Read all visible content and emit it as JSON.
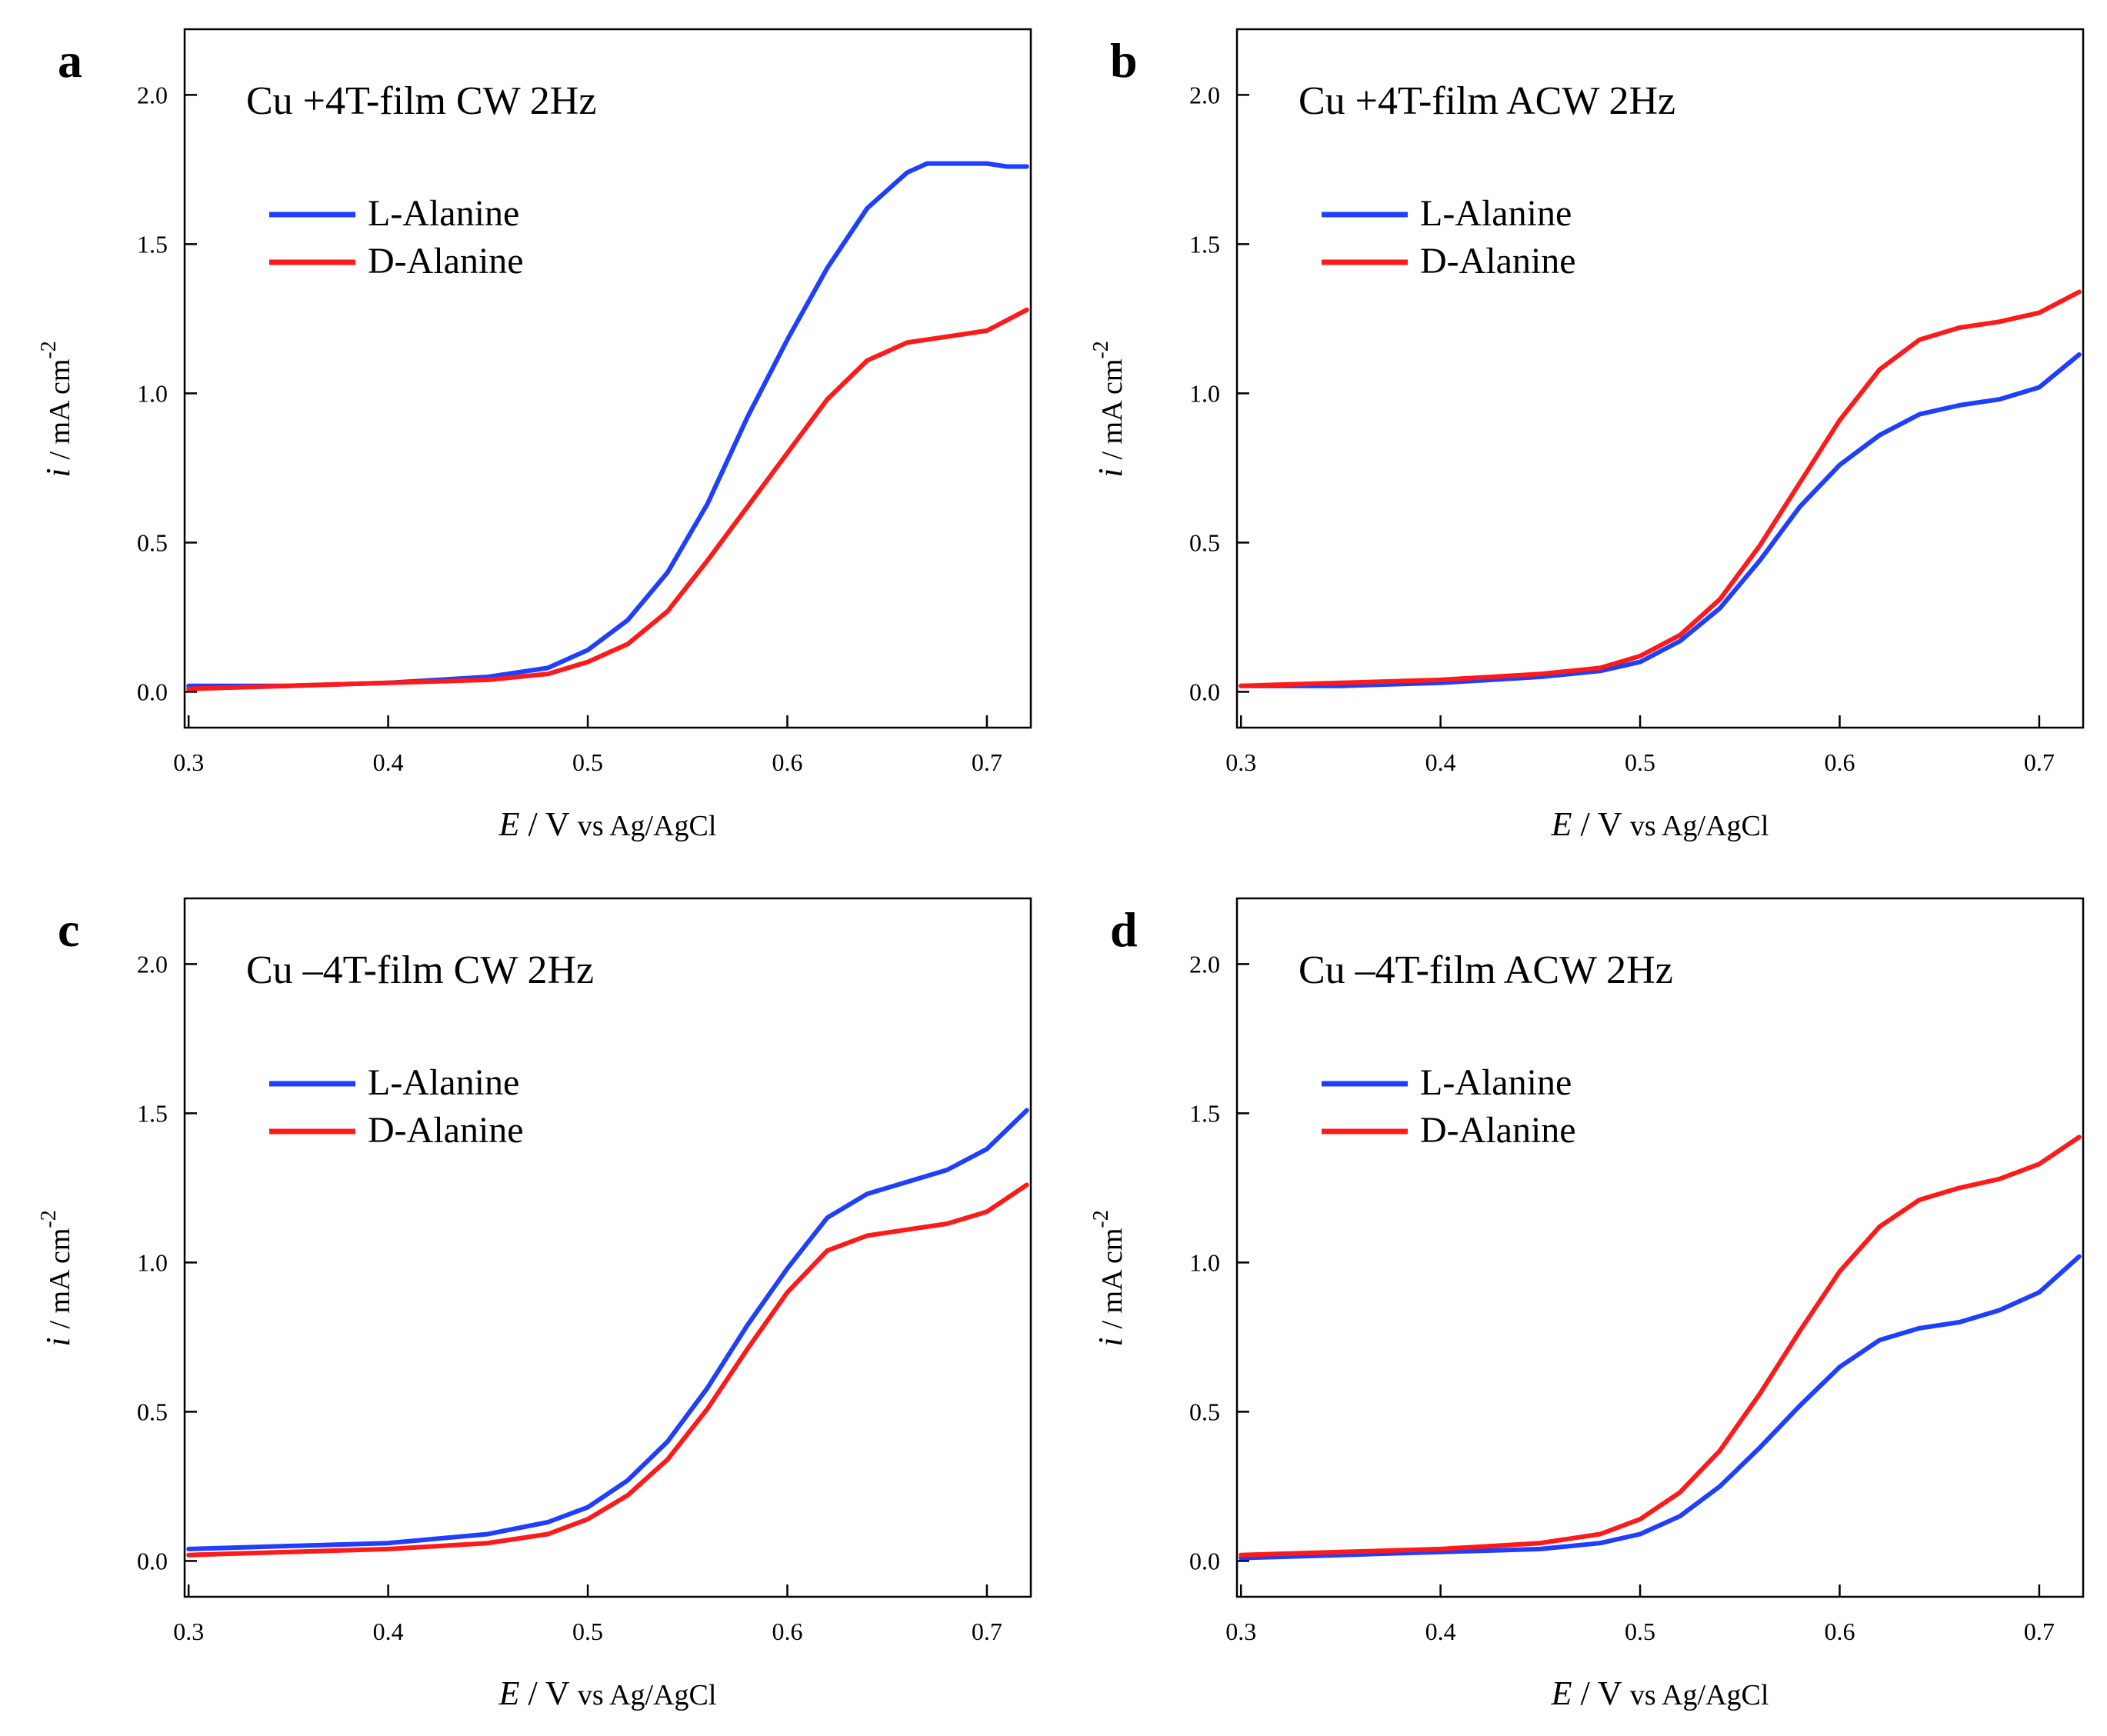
{
  "colors": {
    "blue": "#1f3fff",
    "red": "#ff1a1a",
    "axis": "#000000"
  },
  "chart_data": [
    {
      "panel": "a",
      "type": "line",
      "title": "Cu +4T-film  CW 2Hz",
      "xlabel_symbol": "E",
      "xlabel_unit": "/ V",
      "xlabel_ref": "vs Ag/AgCl",
      "ylabel_symbol": "i",
      "ylabel_unit": "/ mA cm",
      "ylabel_exp": "-2",
      "xlim": [
        0.298,
        0.722
      ],
      "ylim": [
        -0.12,
        2.22
      ],
      "xticks": [
        "0.3",
        "0.4",
        "0.5",
        "0.6",
        "0.7"
      ],
      "yticks": [
        "0.0",
        "0.5",
        "1.0",
        "1.5",
        "2.0"
      ],
      "legend_position": "upper-left",
      "series": [
        {
          "name": "L-Alanine",
          "color": "#1f3fff",
          "x": [
            0.3,
            0.35,
            0.4,
            0.45,
            0.48,
            0.5,
            0.52,
            0.54,
            0.56,
            0.58,
            0.6,
            0.62,
            0.64,
            0.66,
            0.67,
            0.7,
            0.71,
            0.72
          ],
          "y": [
            0.02,
            0.02,
            0.03,
            0.05,
            0.08,
            0.14,
            0.24,
            0.4,
            0.63,
            0.92,
            1.18,
            1.42,
            1.62,
            1.74,
            1.77,
            1.77,
            1.76,
            1.76
          ]
        },
        {
          "name": "D-Alanine",
          "color": "#ff1a1a",
          "x": [
            0.3,
            0.35,
            0.4,
            0.45,
            0.48,
            0.5,
            0.52,
            0.54,
            0.56,
            0.58,
            0.6,
            0.62,
            0.64,
            0.66,
            0.68,
            0.7,
            0.72
          ],
          "y": [
            0.01,
            0.02,
            0.03,
            0.04,
            0.06,
            0.1,
            0.16,
            0.27,
            0.44,
            0.62,
            0.8,
            0.98,
            1.11,
            1.17,
            1.19,
            1.21,
            1.28
          ]
        }
      ]
    },
    {
      "panel": "b",
      "type": "line",
      "title": "Cu +4T-film ACW 2Hz",
      "xlabel_symbol": "E",
      "xlabel_unit": "/ V",
      "xlabel_ref": "vs Ag/AgCl",
      "ylabel_symbol": "i",
      "ylabel_unit": "/ mA cm",
      "ylabel_exp": "-2",
      "xlim": [
        0.298,
        0.722
      ],
      "ylim": [
        -0.12,
        2.22
      ],
      "xticks": [
        "0.3",
        "0.4",
        "0.5",
        "0.6",
        "0.7"
      ],
      "yticks": [
        "0.0",
        "0.5",
        "1.0",
        "1.5",
        "2.0"
      ],
      "legend_position": "upper-left",
      "series": [
        {
          "name": "L-Alanine",
          "color": "#1f3fff",
          "x": [
            0.3,
            0.35,
            0.4,
            0.45,
            0.48,
            0.5,
            0.52,
            0.54,
            0.56,
            0.58,
            0.6,
            0.62,
            0.64,
            0.66,
            0.68,
            0.7,
            0.72
          ],
          "y": [
            0.02,
            0.02,
            0.03,
            0.05,
            0.07,
            0.1,
            0.17,
            0.28,
            0.44,
            0.62,
            0.76,
            0.86,
            0.93,
            0.96,
            0.98,
            1.02,
            1.13
          ]
        },
        {
          "name": "D-Alanine",
          "color": "#ff1a1a",
          "x": [
            0.3,
            0.35,
            0.4,
            0.45,
            0.48,
            0.5,
            0.52,
            0.54,
            0.56,
            0.58,
            0.6,
            0.62,
            0.64,
            0.66,
            0.68,
            0.7,
            0.72
          ],
          "y": [
            0.02,
            0.03,
            0.04,
            0.06,
            0.08,
            0.12,
            0.19,
            0.31,
            0.49,
            0.7,
            0.91,
            1.08,
            1.18,
            1.22,
            1.24,
            1.27,
            1.34
          ]
        }
      ]
    },
    {
      "panel": "c",
      "type": "line",
      "title": "Cu –4T-film  CW 2Hz",
      "xlabel_symbol": "E",
      "xlabel_unit": "/ V",
      "xlabel_ref": "vs Ag/AgCl",
      "ylabel_symbol": "i",
      "ylabel_unit": "/ mA cm",
      "ylabel_exp": "-2",
      "xlim": [
        0.298,
        0.722
      ],
      "ylim": [
        -0.12,
        2.22
      ],
      "xticks": [
        "0.3",
        "0.4",
        "0.5",
        "0.6",
        "0.7"
      ],
      "yticks": [
        "0.0",
        "0.5",
        "1.0",
        "1.5",
        "2.0"
      ],
      "legend_position": "upper-left",
      "series": [
        {
          "name": "L-Alanine",
          "color": "#1f3fff",
          "x": [
            0.3,
            0.35,
            0.4,
            0.45,
            0.48,
            0.5,
            0.52,
            0.54,
            0.56,
            0.58,
            0.6,
            0.62,
            0.64,
            0.66,
            0.68,
            0.7,
            0.72
          ],
          "y": [
            0.04,
            0.05,
            0.06,
            0.09,
            0.13,
            0.18,
            0.27,
            0.4,
            0.58,
            0.79,
            0.98,
            1.15,
            1.23,
            1.27,
            1.31,
            1.38,
            1.51
          ]
        },
        {
          "name": "D-Alanine",
          "color": "#ff1a1a",
          "x": [
            0.3,
            0.35,
            0.4,
            0.45,
            0.48,
            0.5,
            0.52,
            0.54,
            0.56,
            0.58,
            0.6,
            0.62,
            0.64,
            0.66,
            0.68,
            0.7,
            0.72
          ],
          "y": [
            0.02,
            0.03,
            0.04,
            0.06,
            0.09,
            0.14,
            0.22,
            0.34,
            0.51,
            0.71,
            0.9,
            1.04,
            1.09,
            1.11,
            1.13,
            1.17,
            1.26
          ]
        }
      ]
    },
    {
      "panel": "d",
      "type": "line",
      "title": "Cu –4T-film  ACW 2Hz",
      "xlabel_symbol": "E",
      "xlabel_unit": "/ V",
      "xlabel_ref": "vs Ag/AgCl",
      "ylabel_symbol": "i",
      "ylabel_unit": "/ mA cm",
      "ylabel_exp": "-2",
      "xlim": [
        0.298,
        0.722
      ],
      "ylim": [
        -0.12,
        2.22
      ],
      "xticks": [
        "0.3",
        "0.4",
        "0.5",
        "0.6",
        "0.7"
      ],
      "yticks": [
        "0.0",
        "0.5",
        "1.0",
        "1.5",
        "2.0"
      ],
      "legend_position": "upper-left",
      "series": [
        {
          "name": "L-Alanine",
          "color": "#1f3fff",
          "x": [
            0.3,
            0.35,
            0.4,
            0.45,
            0.48,
            0.5,
            0.52,
            0.54,
            0.56,
            0.58,
            0.6,
            0.62,
            0.64,
            0.66,
            0.68,
            0.7,
            0.72
          ],
          "y": [
            0.01,
            0.02,
            0.03,
            0.04,
            0.06,
            0.09,
            0.15,
            0.25,
            0.38,
            0.52,
            0.65,
            0.74,
            0.78,
            0.8,
            0.84,
            0.9,
            1.02
          ]
        },
        {
          "name": "D-Alanine",
          "color": "#ff1a1a",
          "x": [
            0.3,
            0.35,
            0.4,
            0.45,
            0.48,
            0.5,
            0.52,
            0.54,
            0.56,
            0.58,
            0.6,
            0.62,
            0.64,
            0.66,
            0.68,
            0.7,
            0.72
          ],
          "y": [
            0.02,
            0.03,
            0.04,
            0.06,
            0.09,
            0.14,
            0.23,
            0.37,
            0.56,
            0.77,
            0.97,
            1.12,
            1.21,
            1.25,
            1.28,
            1.33,
            1.42
          ]
        }
      ]
    }
  ]
}
